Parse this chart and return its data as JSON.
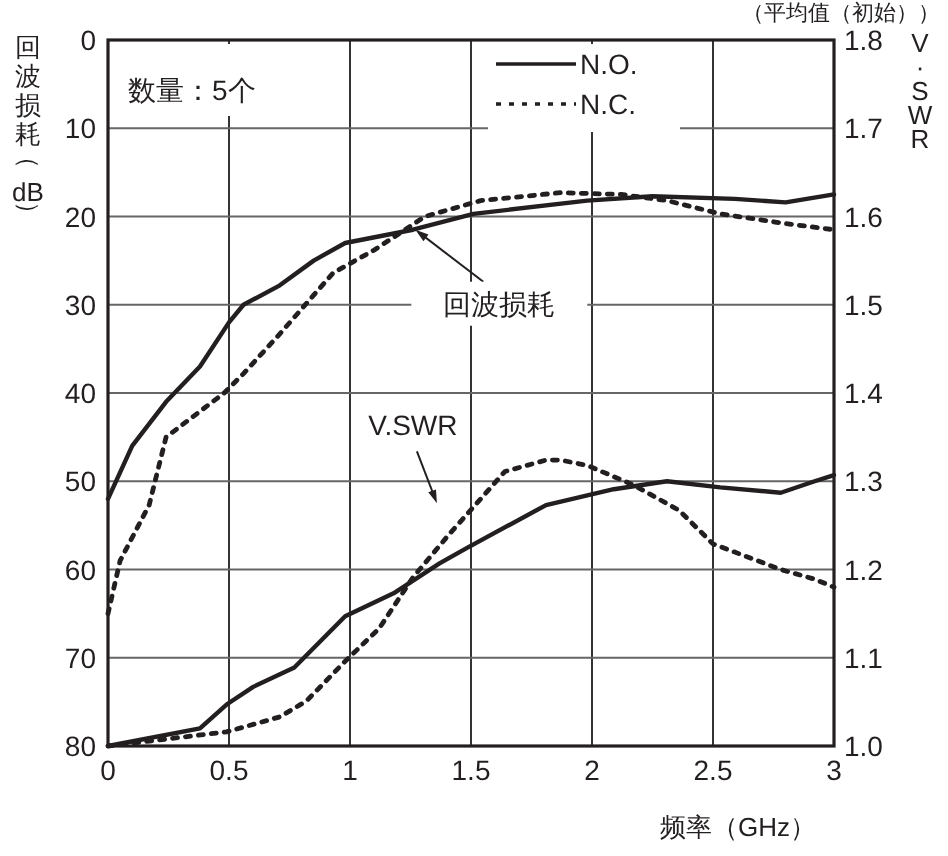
{
  "chart_data": {
    "type": "line",
    "subtitle": "（平均值（初始））",
    "ylabel": "回波损耗（dB）",
    "y2label": "V·SWR",
    "xlabel": "频率（GHz）",
    "xlim": [
      0,
      3
    ],
    "xticks": [
      0,
      0.5,
      1,
      1.5,
      2,
      2.5,
      3
    ],
    "ylim": [
      80,
      0
    ],
    "yticks": [
      0,
      10,
      20,
      30,
      40,
      50,
      60,
      70,
      80
    ],
    "y2lim": [
      1.0,
      1.8
    ],
    "y2ticks": [
      {
        "value": 1.0,
        "label": "1.0"
      },
      1.1,
      1.2,
      1.3,
      1.4,
      1.5,
      1.6,
      1.7,
      1.8
    ],
    "grid": true,
    "legend": "top",
    "series": [
      {
        "name": "N.O.",
        "color": "#231f20",
        "line_style": "solid",
        "x": [
          0,
          0.1,
          0.24,
          0.38,
          0.5,
          0.56,
          0.71,
          0.85,
          0.98,
          1.26,
          1.51,
          1.98,
          2.25,
          2.59,
          2.8,
          3.0
        ],
        "values": [
          52,
          46,
          41,
          37,
          32,
          30,
          27.8,
          25,
          23,
          21.5,
          19.7,
          18.2,
          17.7,
          18,
          18.4,
          17.5
        ]
      },
      {
        "name": "N.C.",
        "color": "#231f20",
        "line_style": "dotted",
        "x": [
          0,
          0.05,
          0.17,
          0.24,
          0.48,
          0.56,
          0.71,
          0.93,
          1.1,
          1.31,
          1.54,
          1.87,
          2.12,
          2.31,
          2.53,
          2.8,
          3.0
        ],
        "values": [
          65,
          59,
          52.7,
          45,
          40,
          37.8,
          33.3,
          26.4,
          23.8,
          20,
          18.2,
          17.3,
          17.5,
          18.2,
          19.7,
          20.8,
          21.5
        ]
      },
      {
        "color": "#231f20",
        "line_style": "solid",
        "axis": "y2",
        "x": [
          0,
          0.38,
          0.49,
          0.6,
          0.77,
          0.98,
          1.18,
          1.37,
          1.48,
          1.81,
          2.09,
          2.31,
          2.53,
          2.78,
          2.92,
          3.0
        ],
        "values": [
          1.0,
          1.02,
          1.047,
          1.067,
          1.089,
          1.147,
          1.173,
          1.207,
          1.224,
          1.273,
          1.291,
          1.3,
          1.293,
          1.287,
          1.3,
          1.307
        ]
      },
      {
        "color": "#231f20",
        "line_style": "dotted",
        "axis": "y2",
        "x": [
          0,
          0.49,
          0.71,
          0.82,
          0.98,
          1.12,
          1.26,
          1.41,
          1.54,
          1.64,
          1.81,
          1.87,
          1.98,
          2.17,
          2.36,
          2.5,
          2.78,
          2.92,
          3.0
        ],
        "values": [
          1.0,
          1.016,
          1.033,
          1.051,
          1.096,
          1.133,
          1.191,
          1.24,
          1.28,
          1.311,
          1.324,
          1.324,
          1.318,
          1.296,
          1.267,
          1.229,
          1.2,
          1.189,
          1.18
        ]
      }
    ],
    "annotations": [
      "数量：5个",
      {
        "text": "回波损耗",
        "x": 1.27,
        "y": 21.5
      },
      "V.SWR"
    ]
  }
}
